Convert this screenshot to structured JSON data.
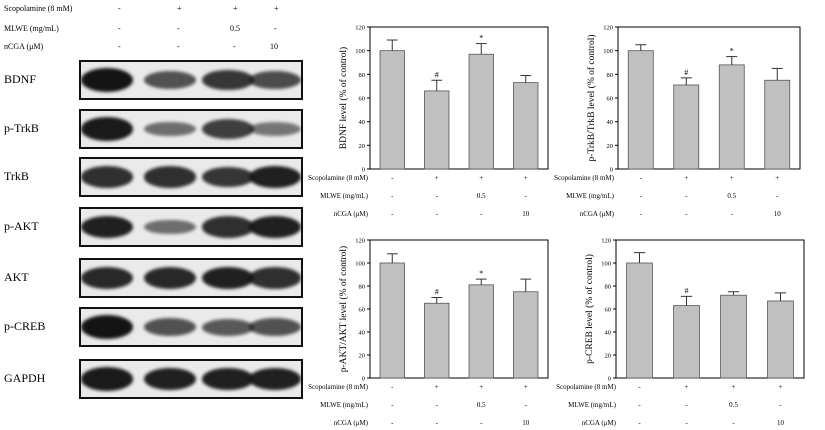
{
  "header": {
    "conditions": [
      {
        "label": "Scopolamine (8 mM)",
        "values": [
          "-",
          "+",
          "+",
          "+"
        ]
      },
      {
        "label": "MLWE (mg/mL)",
        "values": [
          "-",
          "-",
          "0.5",
          "-"
        ]
      },
      {
        "label": "nCGA (μM)",
        "values": [
          "-",
          "-",
          "-",
          "10"
        ]
      }
    ]
  },
  "western_blot": {
    "proteins": [
      {
        "name": "BDNF",
        "intensities": [
          1.0,
          0.55,
          0.75,
          0.6
        ]
      },
      {
        "name": "p-TrkB",
        "intensities": [
          0.95,
          0.35,
          0.7,
          0.3
        ]
      },
      {
        "name": "TrkB",
        "intensities": [
          0.8,
          0.8,
          0.75,
          0.9
        ]
      },
      {
        "name": "p-AKT",
        "intensities": [
          0.9,
          0.35,
          0.8,
          0.9
        ]
      },
      {
        "name": "AKT",
        "intensities": [
          0.85,
          0.85,
          0.9,
          0.8
        ]
      },
      {
        "name": "p-CREB",
        "intensities": [
          1.0,
          0.55,
          0.5,
          0.55
        ]
      },
      {
        "name": "GAPDH",
        "intensities": [
          0.95,
          0.9,
          0.9,
          0.9
        ]
      }
    ]
  },
  "chart_data": [
    {
      "type": "bar",
      "ylabel": "BDNF level (% of control)",
      "ylim": [
        0,
        120
      ],
      "yticks": [
        0,
        20,
        40,
        60,
        80,
        100,
        120
      ],
      "values": [
        100,
        66,
        97,
        73
      ],
      "errors": [
        9,
        9,
        9,
        6
      ],
      "significance": [
        "",
        "#",
        "*",
        ""
      ],
      "conditions": [
        {
          "label": "Scopolamine (8 mM)",
          "values": [
            "-",
            "+",
            "+",
            "+"
          ]
        },
        {
          "label": "MLWE (mg/mL)",
          "values": [
            "-",
            "-",
            "0.5",
            "-"
          ]
        },
        {
          "label": "nCGA (μM)",
          "values": [
            "-",
            "-",
            "-",
            "10"
          ]
        }
      ]
    },
    {
      "type": "bar",
      "ylabel": "p-TrkB/TrkB level (% of control)",
      "ylim": [
        0,
        120
      ],
      "yticks": [
        0,
        20,
        40,
        60,
        80,
        100,
        120
      ],
      "values": [
        100,
        71,
        88,
        75
      ],
      "errors": [
        5,
        6,
        7,
        10
      ],
      "significance": [
        "",
        "#",
        "*",
        ""
      ],
      "conditions": [
        {
          "label": "Scopolamine (8 mM)",
          "values": [
            "-",
            "+",
            "+",
            "+"
          ]
        },
        {
          "label": "MLWE (mg/mL)",
          "values": [
            "-",
            "-",
            "0.5",
            "-"
          ]
        },
        {
          "label": "nCGA (μM)",
          "values": [
            "-",
            "-",
            "-",
            "10"
          ]
        }
      ]
    },
    {
      "type": "bar",
      "ylabel": "p-AKT/AKT level (% of control)",
      "ylim": [
        0,
        120
      ],
      "yticks": [
        0,
        20,
        40,
        60,
        80,
        100,
        120
      ],
      "values": [
        100,
        65,
        81,
        75
      ],
      "errors": [
        8,
        5,
        5,
        11
      ],
      "significance": [
        "",
        "#",
        "*",
        ""
      ],
      "conditions": [
        {
          "label": "Scopolamine (8 mM)",
          "values": [
            "-",
            "+",
            "+",
            "+"
          ]
        },
        {
          "label": "MLWE (mg/mL)",
          "values": [
            "-",
            "-",
            "0.5",
            "-"
          ]
        },
        {
          "label": "nCGA (μM)",
          "values": [
            "-",
            "-",
            "-",
            "10"
          ]
        }
      ]
    },
    {
      "type": "bar",
      "ylabel": "p-CREB level (% of control)",
      "ylim": [
        0,
        120
      ],
      "yticks": [
        0,
        20,
        40,
        60,
        80,
        100,
        120
      ],
      "values": [
        100,
        63,
        72,
        67
      ],
      "errors": [
        9,
        8,
        3,
        7
      ],
      "significance": [
        "",
        "#",
        "",
        ""
      ],
      "conditions": [
        {
          "label": "Scopolamine (8 mM)",
          "values": [
            "-",
            "+",
            "+",
            "+"
          ]
        },
        {
          "label": "MLWE (mg/mL)",
          "values": [
            "-",
            "-",
            "0.5",
            "-"
          ]
        },
        {
          "label": "nCGA (μM)",
          "values": [
            "-",
            "-",
            "-",
            "10"
          ]
        }
      ]
    }
  ],
  "colors": {
    "bar": "#c0c0c0",
    "band": "#141414",
    "blot_bg": "#eaeaea"
  }
}
